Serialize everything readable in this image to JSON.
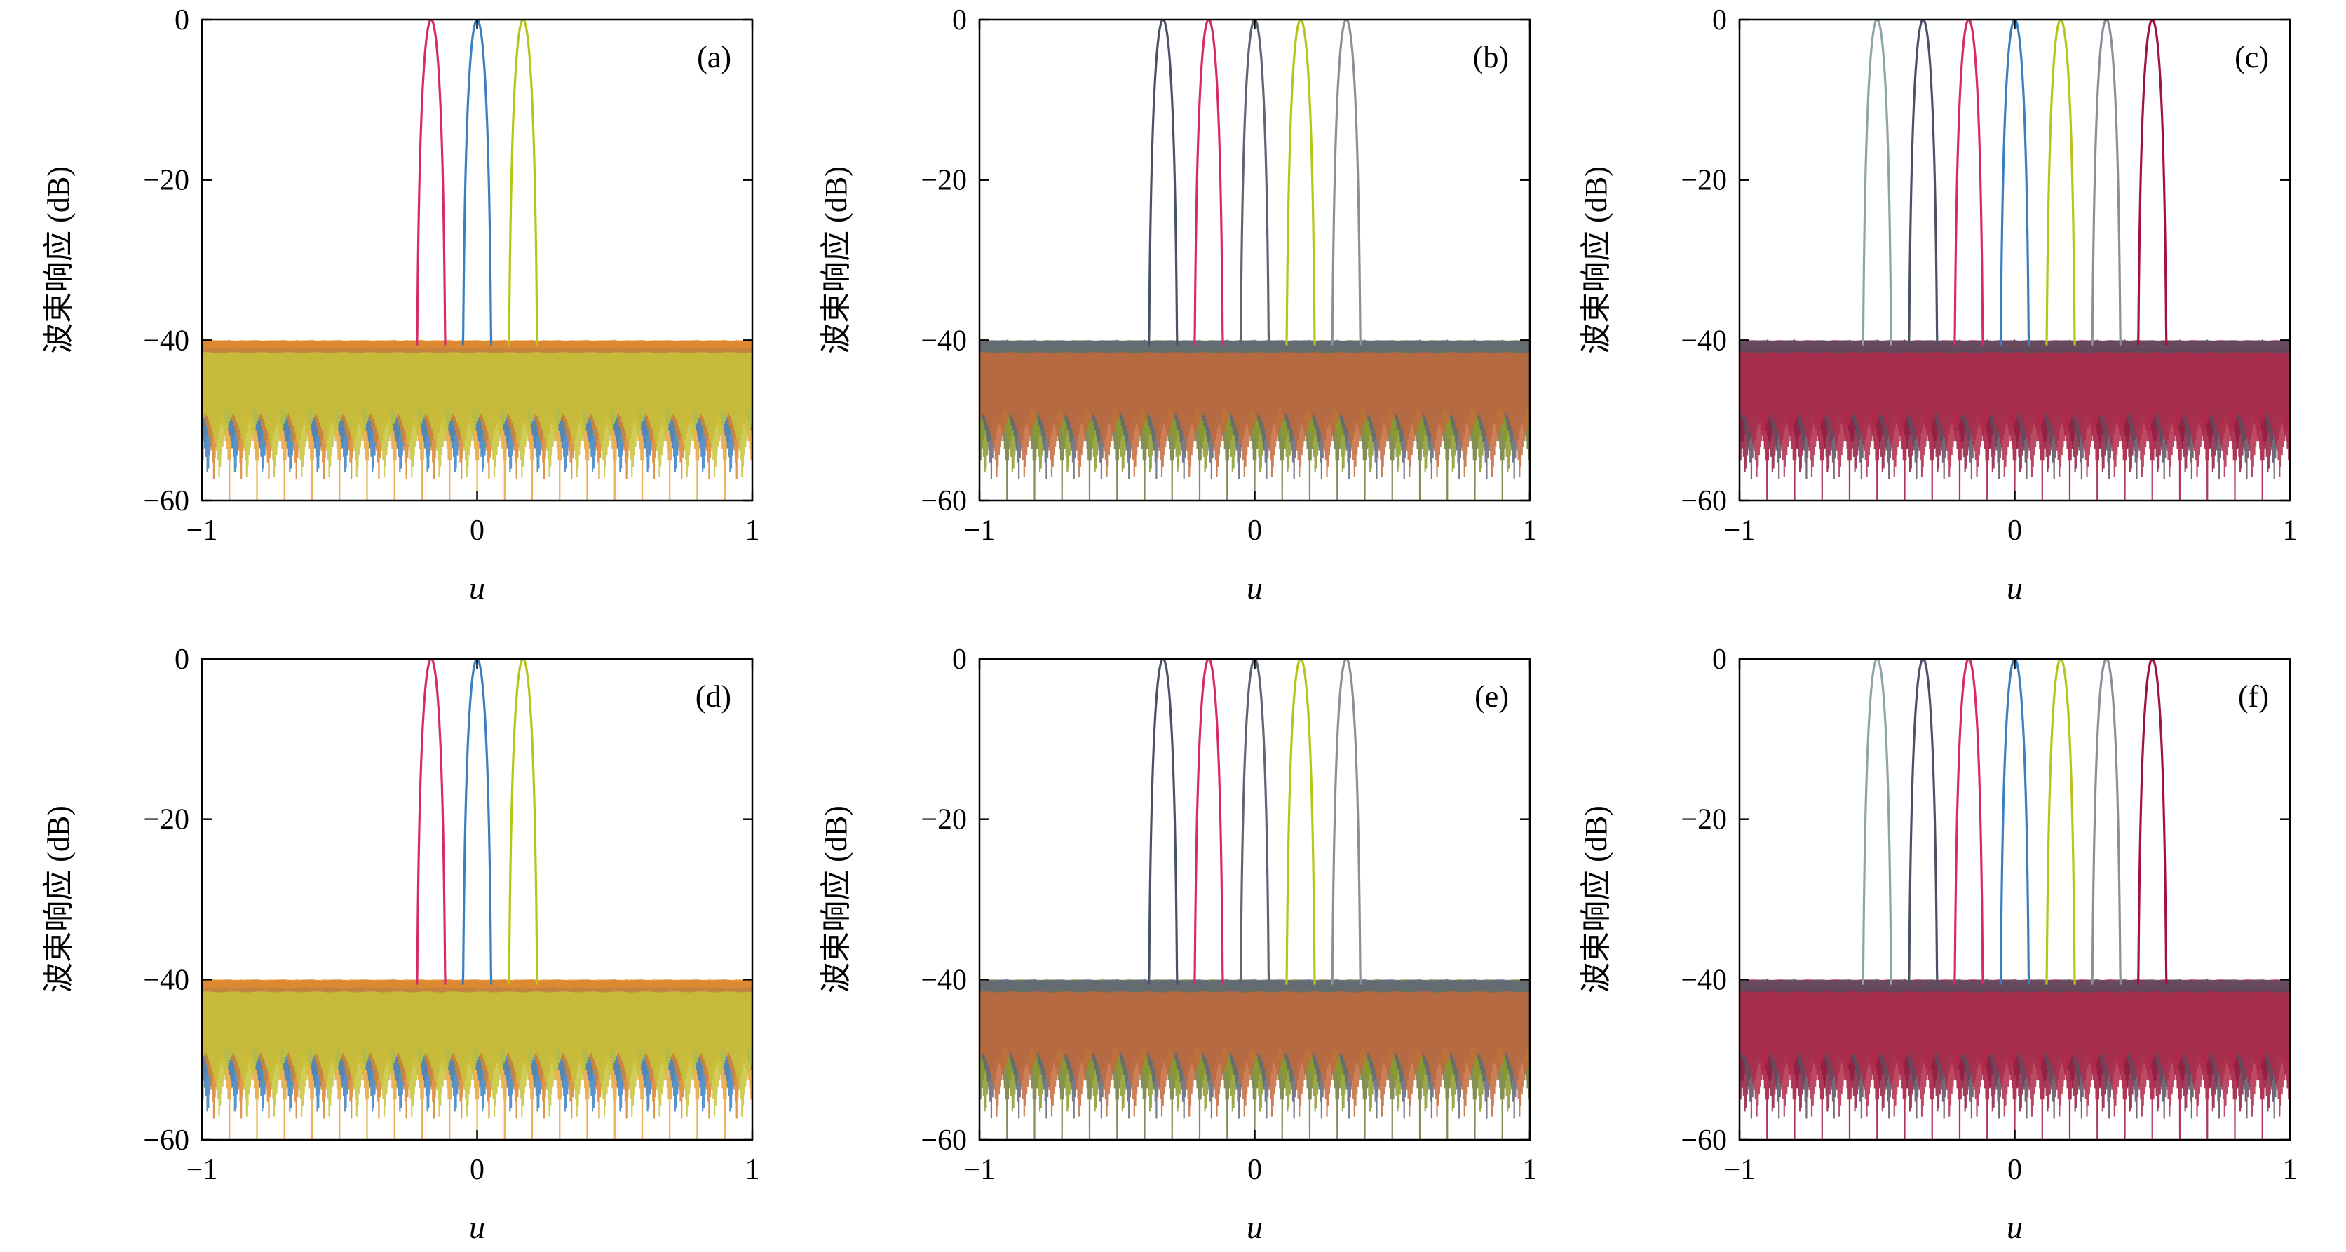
{
  "chart_data": [
    {
      "type": "line",
      "panel_label": "(a)",
      "xlabel": "u",
      "ylabel": "波束响应 (dB)",
      "xlim": [
        -1,
        1
      ],
      "ylim": [
        -60,
        0
      ],
      "xticks": [
        "−1",
        "0",
        "1"
      ],
      "yticks": [
        "0",
        "−20",
        "−40",
        "−60"
      ],
      "sidelobe_level_db": -40,
      "series": [
        {
          "peak_u": -0.167,
          "color": "#d62a6a"
        },
        {
          "peak_u": 0,
          "color": "#3a7fc1"
        },
        {
          "peak_u": 0.167,
          "color": "#b7c41b"
        }
      ],
      "sidelobe_colors": [
        "#e8a33a",
        "#3a7fc1",
        "#d9822b",
        "#c7c43a"
      ]
    },
    {
      "type": "line",
      "panel_label": "(b)",
      "xlabel": "u",
      "ylabel": "波束响应 (dB)",
      "xlim": [
        -1,
        1
      ],
      "ylim": [
        -60,
        0
      ],
      "xticks": [
        "−1",
        "0",
        "1"
      ],
      "yticks": [
        "0",
        "−20",
        "−40",
        "−60"
      ],
      "sidelobe_level_db": -40,
      "series": [
        {
          "peak_u": -0.333,
          "color": "#4a5366"
        },
        {
          "peak_u": -0.167,
          "color": "#d62a6a"
        },
        {
          "peak_u": 0,
          "color": "#5f6577"
        },
        {
          "peak_u": 0.167,
          "color": "#b7c41b"
        },
        {
          "peak_u": 0.333,
          "color": "#8a8f99"
        }
      ],
      "sidelobe_colors": [
        "#6e7a3a",
        "#8a9a2a",
        "#5f6577",
        "#c46a3a"
      ]
    },
    {
      "type": "line",
      "panel_label": "(c)",
      "xlabel": "u",
      "ylabel": "波束响应 (dB)",
      "xlim": [
        -1,
        1
      ],
      "ylim": [
        -60,
        0
      ],
      "xticks": [
        "−1",
        "0",
        "1"
      ],
      "yticks": [
        "0",
        "−20",
        "−40",
        "−60"
      ],
      "sidelobe_level_db": -40,
      "series": [
        {
          "peak_u": -0.5,
          "color": "#8fa5a8"
        },
        {
          "peak_u": -0.333,
          "color": "#4a5366"
        },
        {
          "peak_u": -0.167,
          "color": "#d62a6a"
        },
        {
          "peak_u": 0,
          "color": "#3a7fc1"
        },
        {
          "peak_u": 0.167,
          "color": "#b7c41b"
        },
        {
          "peak_u": 0.333,
          "color": "#8a8f99"
        },
        {
          "peak_u": 0.5,
          "color": "#a3123a"
        }
      ],
      "sidelobe_colors": [
        "#a3123a",
        "#8c1f3f",
        "#5a4e5e",
        "#b02a4a"
      ]
    },
    {
      "type": "line",
      "panel_label": "(d)",
      "xlabel": "u",
      "ylabel": "波束响应 (dB)",
      "xlim": [
        -1,
        1
      ],
      "ylim": [
        -60,
        0
      ],
      "xticks": [
        "−1",
        "0",
        "1"
      ],
      "yticks": [
        "0",
        "−20",
        "−40",
        "−60"
      ],
      "sidelobe_level_db": -40,
      "series": [
        {
          "peak_u": -0.167,
          "color": "#d62a6a"
        },
        {
          "peak_u": 0,
          "color": "#3a7fc1"
        },
        {
          "peak_u": 0.167,
          "color": "#b7c41b"
        }
      ],
      "sidelobe_colors": [
        "#e8a33a",
        "#3a7fc1",
        "#d9822b",
        "#c7c43a"
      ]
    },
    {
      "type": "line",
      "panel_label": "(e)",
      "xlabel": "u",
      "ylabel": "波束响应 (dB)",
      "xlim": [
        -1,
        1
      ],
      "ylim": [
        -60,
        0
      ],
      "xticks": [
        "−1",
        "0",
        "1"
      ],
      "yticks": [
        "0",
        "−20",
        "−40",
        "−60"
      ],
      "sidelobe_level_db": -40,
      "series": [
        {
          "peak_u": -0.333,
          "color": "#4a5366"
        },
        {
          "peak_u": -0.167,
          "color": "#d62a6a"
        },
        {
          "peak_u": 0,
          "color": "#5f6577"
        },
        {
          "peak_u": 0.167,
          "color": "#b7c41b"
        },
        {
          "peak_u": 0.333,
          "color": "#8a8f99"
        }
      ],
      "sidelobe_colors": [
        "#6e7a3a",
        "#8a9a2a",
        "#5f6577",
        "#c46a3a"
      ]
    },
    {
      "type": "line",
      "panel_label": "(f)",
      "xlabel": "u",
      "ylabel": "波束响应 (dB)",
      "xlim": [
        -1,
        1
      ],
      "ylim": [
        -60,
        0
      ],
      "xticks": [
        "−1",
        "0",
        "1"
      ],
      "yticks": [
        "0",
        "−20",
        "−40",
        "−60"
      ],
      "sidelobe_level_db": -40,
      "series": [
        {
          "peak_u": -0.5,
          "color": "#8fa5a8"
        },
        {
          "peak_u": -0.333,
          "color": "#4a5366"
        },
        {
          "peak_u": -0.167,
          "color": "#d62a6a"
        },
        {
          "peak_u": 0,
          "color": "#3a7fc1"
        },
        {
          "peak_u": 0.167,
          "color": "#b7c41b"
        },
        {
          "peak_u": 0.333,
          "color": "#8a8f99"
        },
        {
          "peak_u": 0.5,
          "color": "#a3123a"
        }
      ],
      "sidelobe_colors": [
        "#a3123a",
        "#8c1f3f",
        "#5a4e5e",
        "#b02a4a"
      ]
    }
  ]
}
